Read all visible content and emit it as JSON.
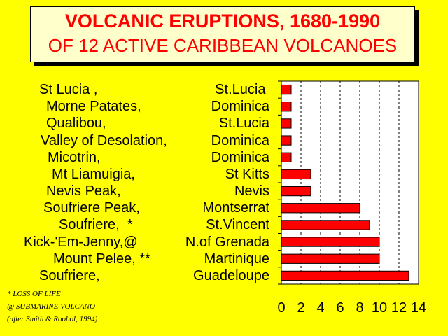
{
  "title": {
    "line1": "VOLCANIC ERUPTIONS, 1680-1990",
    "line2": "OF 12 ACTIVE CARIBBEAN VOLCANOES"
  },
  "chart_data": {
    "type": "bar",
    "orientation": "horizontal",
    "categories": [
      {
        "name": "St Lucia ,",
        "place": "St.Lucia ",
        "name_indent": 6
      },
      {
        "name": "Morne Patates,",
        "place": "Dominica",
        "name_indent": 16
      },
      {
        "name": "Qualibou,",
        "place": "St.Lucia",
        "name_indent": 16
      },
      {
        "name": "Valley of Desolation,",
        "place": "Dominica",
        "name_indent": 8
      },
      {
        "name": "Micotrin,",
        "place": "Dominica",
        "name_indent": 18
      },
      {
        "name": "Mt Liamuigia,",
        "place": "St Kitts",
        "name_indent": 24
      },
      {
        "name": "Nevis Peak,",
        "place": "Nevis",
        "name_indent": 16
      },
      {
        "name": "Soufriere Peak,",
        "place": "Montserrat",
        "name_indent": 12
      },
      {
        "name": "Soufriere,  *",
        "place": "St.Vincent",
        "name_indent": 34
      },
      {
        "name": "Kick-'Em-Jenny,@",
        "place": "N.of Grenada",
        "name_indent": -16
      },
      {
        "name": "Mount Pelee, **",
        "place": "Martinique",
        "name_indent": 26
      },
      {
        "name": "Soufriere,",
        "place": "Guadeloupe",
        "name_indent": 6
      }
    ],
    "values": [
      1,
      1,
      1,
      1,
      1,
      3,
      3,
      8,
      9,
      10,
      10,
      13
    ],
    "xlim": [
      0,
      14
    ],
    "xticks": [
      "0",
      "2",
      "4",
      "6",
      "8",
      "10",
      "12",
      "14"
    ],
    "grid": "vertical dashed",
    "bar_color": "#ff0000"
  },
  "footnotes": [
    "* LOSS OF LIFE",
    "@ SUBMARINE VOLCANO",
    "(after  Smith & Roobol, 1994)"
  ]
}
